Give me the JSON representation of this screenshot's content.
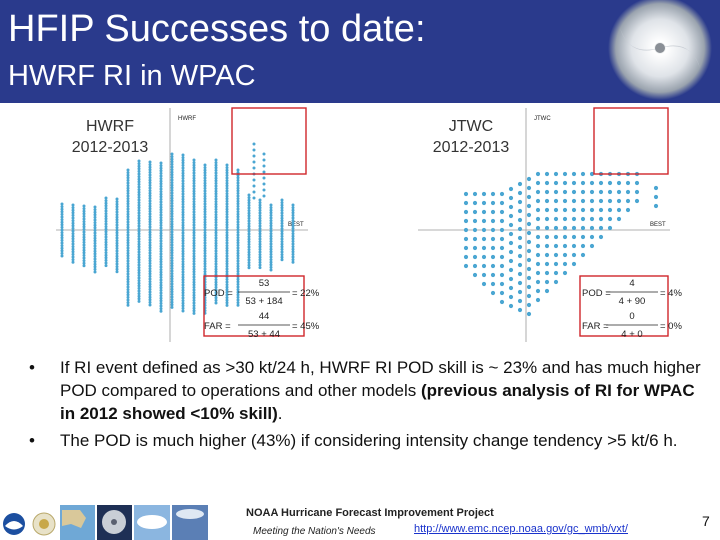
{
  "slide": {
    "title": "HFIP Successes to date:",
    "subtitle": "HWRF RI in WPAC"
  },
  "colors": {
    "header_bg": "#2a3a8c",
    "dots": "#4aa6d2",
    "highlight_box": "#d0262a",
    "link": "#1a33cc"
  },
  "panels": [
    {
      "label_line1": "HWRF",
      "label_line2": "2012-2013",
      "plot_corner_label": "HWRF",
      "axis_label": "BEST",
      "pod": {
        "lhs": "POD =",
        "num": "53",
        "den": "53 + 184",
        "rhs": "= 22%"
      },
      "far": {
        "lhs": "FAR =",
        "num": "44",
        "den": "53 + 44",
        "rhs": "= 45%"
      }
    },
    {
      "label_line1": "JTWC",
      "label_line2": "2012-2013",
      "plot_corner_label": "JTWC",
      "axis_label": "BEST",
      "pod": {
        "lhs": "POD =",
        "num": "4",
        "den": "4 + 90",
        "rhs": "= 4%"
      },
      "far": {
        "lhs": "FAR =",
        "num": "0",
        "den": "4 + 0",
        "rhs": "= 0%"
      }
    }
  ],
  "bullets": [
    {
      "text": "If RI event defined as >30 kt/24 h, HWRF RI POD skill is ~ 23% and has much higher POD compared to operations and other models ",
      "bold": "(previous analysis of RI for WPAC in 2012 showed <10% skill)",
      "tail": "."
    },
    {
      "text": "The POD is much higher (43%) if considering intensity change tendency >5 kt/6 h.",
      "bold": "",
      "tail": ""
    }
  ],
  "footer": {
    "title": "NOAA Hurricane Forecast Improvement Project",
    "tagline": "Meeting the Nation's Needs",
    "link": "http://www.emc.ncep.noaa.gov/gc_wmb/vxt/",
    "page": "7"
  }
}
